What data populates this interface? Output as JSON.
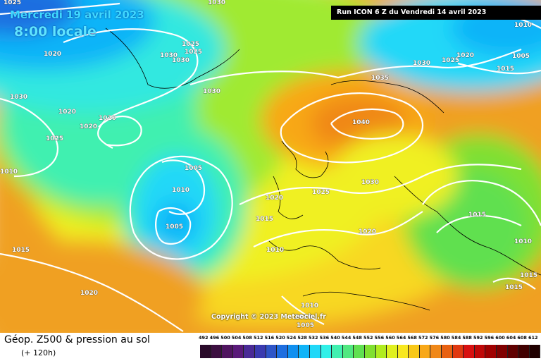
{
  "header": {
    "date": "Mercredi 19 avril 2023",
    "time": "8:00 locale",
    "run": "Run ICON 6 Z du Vendredi 14 avril 2023"
  },
  "copyright": "Copyright © 2023 Meteociel.fr",
  "legend": {
    "title": "Géop. Z500 & pression au sol",
    "subtitle": "(+ 120h)",
    "scale": [
      "492",
      "496",
      "500",
      "504",
      "508",
      "512",
      "516",
      "520",
      "524",
      "528",
      "532",
      "536",
      "540",
      "544",
      "548",
      "552",
      "556",
      "560",
      "564",
      "568",
      "572",
      "576",
      "580",
      "584",
      "588",
      "592",
      "596",
      "600",
      "604",
      "608",
      "612"
    ],
    "scale_colors": [
      "#2a0a2a",
      "#3c0f40",
      "#501560",
      "#5a1a7a",
      "#4a2a96",
      "#3a3ab0",
      "#2e55c8",
      "#1e6ee0",
      "#1090f0",
      "#10b4f8",
      "#20d8f8",
      "#30f0e8",
      "#40f0b0",
      "#50e880",
      "#60e050",
      "#80e030",
      "#b0ec20",
      "#e0f020",
      "#f8e820",
      "#f8c818",
      "#f8a818",
      "#f08818",
      "#e86010",
      "#e03810",
      "#d81010",
      "#c00808",
      "#a00000",
      "#800000",
      "#600000",
      "#400000",
      "#200000"
    ]
  },
  "isobars": {
    "labels": [
      "1025",
      "1030",
      "1020",
      "1030",
      "1025",
      "1025",
      "1030",
      "1030",
      "1020",
      "1030",
      "1020",
      "1010",
      "1005",
      "1020",
      "1025",
      "1035",
      "1030",
      "1025",
      "1020",
      "1015",
      "1040",
      "1005",
      "1010",
      "1005",
      "1025",
      "1030",
      "1020",
      "1015",
      "1015",
      "1020",
      "1010",
      "1010",
      "1015",
      "1020",
      "1010",
      "1010",
      "1005",
      "1015",
      "1015",
      "1010"
    ]
  }
}
